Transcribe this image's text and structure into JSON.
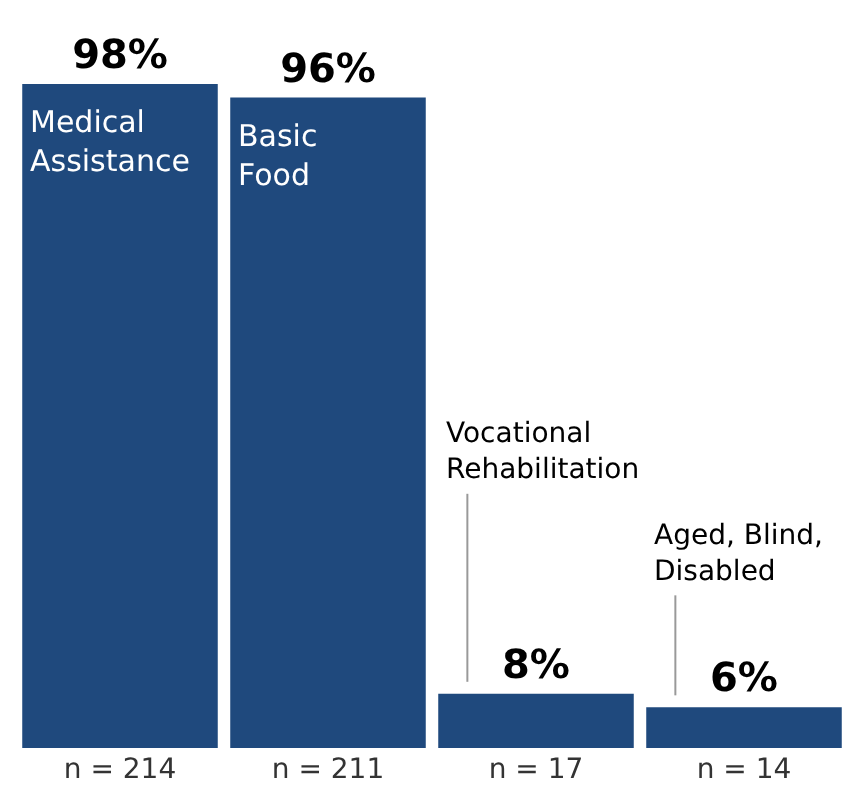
{
  "chart_data": {
    "type": "bar",
    "categories": [
      "n = 214",
      "n = 211",
      "n = 17",
      "n = 14"
    ],
    "values": [
      98,
      96,
      8,
      6
    ],
    "value_labels": [
      "98%",
      "96%",
      "8%",
      "6%"
    ],
    "color": "#1f497d",
    "annotations": [
      "Medical\nAssistance",
      "Basic\nFood",
      "Vocational\nRehabilitation",
      "Aged, Blind,\nDisabled"
    ],
    "tick_labels": "x"
  }
}
